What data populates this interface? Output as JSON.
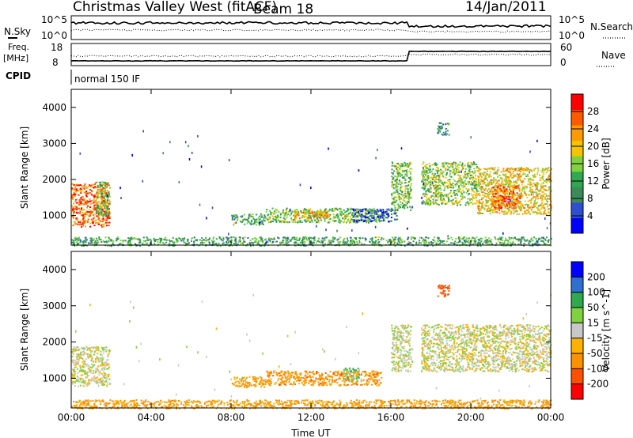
{
  "header": {
    "station": "Christmas Valley West (fitACF)",
    "beam": "Beam 18",
    "date": "14/Jan/2011"
  },
  "noise_panel": {
    "left_label": "N.Sky",
    "left_ticks": [
      "10^5",
      "10^0"
    ],
    "right_label": "N.Search",
    "right_ticks": [
      "10^5",
      "10^0"
    ]
  },
  "freq_panel": {
    "left_label_line1": "Freq.",
    "left_label_line2": "[MHz]",
    "left_ticks": [
      "18",
      "8"
    ],
    "right_label": "Nave",
    "right_ticks": [
      "60",
      "0"
    ]
  },
  "cpid": {
    "label": "CPID",
    "value": "normal 150 IF"
  },
  "colors": {
    "scale_power": [
      "#0000ff",
      "#2f4fd0",
      "#3c8a5a",
      "#2fa84f",
      "#7fd13f",
      "#f5c400",
      "#ff9a00",
      "#ff5a00",
      "#ff0000"
    ],
    "scale_velocity": [
      "#ff0000",
      "#ff5000",
      "#ff9000",
      "#ffb000",
      "#c8c8c8",
      "#7fd13f",
      "#2fa84f",
      "#2f6fd0",
      "#0000ff"
    ]
  },
  "chart_data": [
    {
      "type": "heatmap",
      "quantity": "Power",
      "ylabel": "Slant Range [km]",
      "ylim": [
        180,
        4500
      ],
      "yticks": [
        "1000",
        "2000",
        "3000",
        "4000"
      ],
      "yticks_values": [
        1000,
        2000,
        3000,
        4000
      ],
      "xlim_hours": [
        0,
        24
      ],
      "colorbar_label": "Power [dB]",
      "colorbar_range": [
        0,
        32
      ],
      "colorbar_ticks": [
        "4",
        "8",
        "12",
        "16",
        "20",
        "24",
        "28"
      ],
      "colorbar_tick_values": [
        4,
        8,
        12,
        16,
        20,
        24,
        28
      ],
      "features": [
        {
          "t0": 0.0,
          "t1": 1.9,
          "r0": 700,
          "r1": 1900,
          "v": 26
        },
        {
          "t0": 1.2,
          "t1": 1.9,
          "r0": 1000,
          "r1": 1950,
          "v": 14
        },
        {
          "t0": 8.0,
          "t1": 9.7,
          "r0": 760,
          "r1": 1060,
          "v": 12
        },
        {
          "t0": 9.7,
          "t1": 15.5,
          "r0": 820,
          "r1": 1220,
          "v": 14
        },
        {
          "t0": 11.0,
          "t1": 12.8,
          "r0": 940,
          "r1": 1140,
          "v": 22
        },
        {
          "t0": 14.0,
          "t1": 16.3,
          "r0": 850,
          "r1": 1200,
          "v": 6
        },
        {
          "t0": 16.0,
          "t1": 17.0,
          "r0": 1150,
          "r1": 2500,
          "v": 14
        },
        {
          "t0": 17.5,
          "t1": 20.3,
          "r0": 1300,
          "r1": 2500,
          "v": 16
        },
        {
          "t0": 18.3,
          "t1": 18.9,
          "r0": 3250,
          "r1": 3600,
          "v": 10
        },
        {
          "t0": 20.3,
          "t1": 24.0,
          "r0": 1050,
          "r1": 2350,
          "v": 20
        },
        {
          "t0": 21.0,
          "t1": 22.5,
          "r0": 1200,
          "r1": 1850,
          "v": 26
        },
        {
          "t0": 0.0,
          "t1": 24.0,
          "r0": 180,
          "r1": 420,
          "v": 12
        }
      ]
    },
    {
      "type": "heatmap",
      "quantity": "Velocity",
      "ylabel": "Slant Range [km]",
      "ylim": [
        180,
        4500
      ],
      "yticks": [
        "1000",
        "2000",
        "3000",
        "4000"
      ],
      "yticks_values": [
        1000,
        2000,
        3000,
        4000
      ],
      "xlim_hours": [
        0,
        24
      ],
      "xticks": [
        "00:00",
        "04:00",
        "08:00",
        "12:00",
        "16:00",
        "20:00",
        "00:00"
      ],
      "xticks_values": [
        0,
        4,
        8,
        12,
        16,
        20,
        24
      ],
      "xlabel": "Time UT",
      "colorbar_label": "Velocity [m s^-1]",
      "colorbar_ticks": [
        "200",
        "100",
        "50",
        "15",
        "-15",
        "-50",
        "-100",
        "-200"
      ],
      "features": [
        {
          "t0": 0.0,
          "t1": 1.9,
          "r0": 800,
          "r1": 1900,
          "v": 0
        },
        {
          "t0": 8.0,
          "t1": 9.7,
          "r0": 760,
          "r1": 1060,
          "v": -60
        },
        {
          "t0": 9.7,
          "t1": 15.5,
          "r0": 820,
          "r1": 1220,
          "v": -70
        },
        {
          "t0": 13.6,
          "t1": 14.4,
          "r0": 950,
          "r1": 1300,
          "v": 30
        },
        {
          "t0": 16.0,
          "t1": 17.0,
          "r0": 1200,
          "r1": 2500,
          "v": 10
        },
        {
          "t0": 17.5,
          "t1": 24.0,
          "r0": 1200,
          "r1": 2500,
          "v": 0
        },
        {
          "t0": 18.3,
          "t1": 18.9,
          "r0": 3250,
          "r1": 3600,
          "v": -150
        },
        {
          "t0": 0.0,
          "t1": 24.0,
          "r0": 180,
          "r1": 420,
          "v": -60
        }
      ]
    }
  ]
}
